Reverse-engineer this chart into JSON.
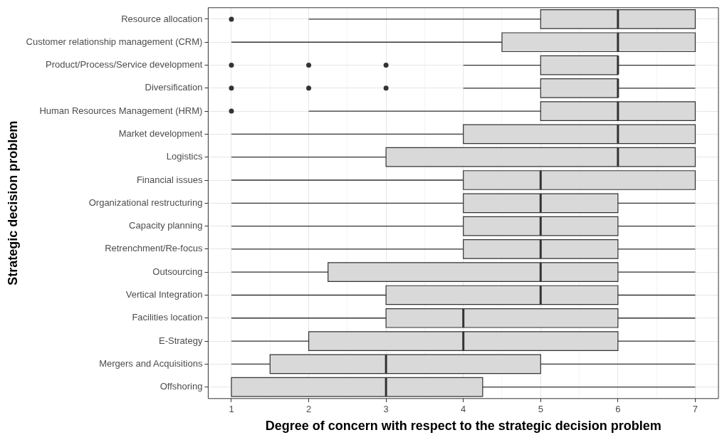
{
  "chart_data": {
    "type": "box",
    "orientation": "horizontal",
    "xlabel": "Degree of concern with respect to the strategic decision problem",
    "ylabel": "Strategic decision problem",
    "categories": [
      "Resource allocation",
      "Customer relationship management (CRM)",
      "Product/Process/Service development",
      "Diversification",
      "Human Resources Management (HRM)",
      "Market development",
      "Logistics",
      "Financial issues",
      "Organizational restructuring",
      "Capacity planning",
      "Retrenchment/Re-focus",
      "Outsourcing",
      "Vertical Integration",
      "Facilities location",
      "E-Strategy",
      "Mergers and Acquisitions",
      "Offshoring"
    ],
    "color": "#d9d9d9",
    "boxes": [
      {
        "low": 2,
        "q1": 5,
        "median": 6,
        "q3": 7,
        "high": 7,
        "outliers": [
          1
        ]
      },
      {
        "low": 1,
        "q1": 4.5,
        "median": 6,
        "q3": 7,
        "high": 7
      },
      {
        "low": 4,
        "q1": 5,
        "median": 6,
        "q3": 6,
        "high": 7,
        "outliers": [
          1,
          2,
          3
        ]
      },
      {
        "low": 4,
        "q1": 5,
        "median": 6,
        "q3": 6,
        "high": 7,
        "outliers": [
          1,
          2,
          3
        ]
      },
      {
        "low": 2,
        "q1": 5,
        "median": 6,
        "q3": 7,
        "high": 7,
        "outliers": [
          1
        ]
      },
      {
        "low": 1,
        "q1": 4,
        "median": 6,
        "q3": 7,
        "high": 7
      },
      {
        "low": 1,
        "q1": 3,
        "median": 6,
        "q3": 7,
        "high": 7
      },
      {
        "low": 1,
        "q1": 4,
        "median": 5,
        "q3": 7,
        "high": 7
      },
      {
        "low": 1,
        "q1": 4,
        "median": 5,
        "q3": 6,
        "high": 7
      },
      {
        "low": 1,
        "q1": 4,
        "median": 5,
        "q3": 6,
        "high": 7
      },
      {
        "low": 1,
        "q1": 4,
        "median": 5,
        "q3": 6,
        "high": 7
      },
      {
        "low": 1,
        "q1": 2.25,
        "median": 5,
        "q3": 6,
        "high": 7
      },
      {
        "low": 1,
        "q1": 3,
        "median": 5,
        "q3": 6,
        "high": 7
      },
      {
        "low": 1,
        "q1": 3,
        "median": 4,
        "q3": 6,
        "high": 7
      },
      {
        "low": 1,
        "q1": 2,
        "median": 4,
        "q3": 6,
        "high": 7
      },
      {
        "low": 1,
        "q1": 1.5,
        "median": 3,
        "q3": 5,
        "high": 7
      },
      {
        "low": 1,
        "q1": 1,
        "median": 3,
        "q3": 4.25,
        "high": 7
      }
    ],
    "xlim": [
      0.7,
      7.3
    ],
    "xticks": [
      1,
      {
        "value": 1.5,
        "label": null
      },
      2,
      {
        "value": 2.5,
        "label": null
      },
      3,
      {
        "value": 3.5,
        "label": null
      },
      4,
      {
        "value": 4.5,
        "label": null
      },
      5,
      {
        "value": 5.5,
        "label": null
      },
      6,
      {
        "value": 6.5,
        "label": null
      },
      7
    ],
    "grid": true,
    "legend": false
  }
}
